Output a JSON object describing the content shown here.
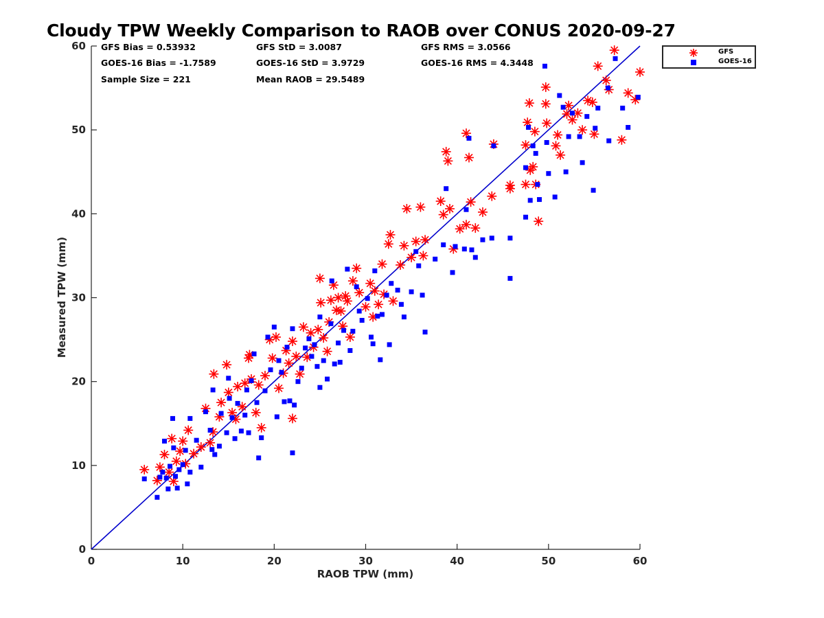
{
  "chart_data": {
    "type": "scatter",
    "title": "Cloudy TPW Weekly Comparison to RAOB over CONUS 2020-09-27",
    "xlabel": "RAOB TPW (mm)",
    "ylabel": "Measured TPW (mm)",
    "xlim": [
      0,
      60
    ],
    "ylim": [
      0,
      60
    ],
    "xticks": [
      "0",
      "10",
      "20",
      "30",
      "40",
      "50",
      "60"
    ],
    "yticks": [
      "0",
      "10",
      "20",
      "30",
      "40",
      "50",
      "60"
    ],
    "grid": false,
    "legend_position": "top-right outside",
    "reference_line": {
      "name": "1:1 line",
      "x": [
        0,
        60
      ],
      "y": [
        0,
        60
      ],
      "color": "#0000cc"
    },
    "stats": [
      [
        "GFS Bias = 0.53932",
        "GFS StD = 3.0087",
        "GFS RMS = 3.0566"
      ],
      [
        "GOES-16 Bias = -1.7589",
        "GOES-16 StD = 3.9729",
        "GOES-16 RMS = 4.3448"
      ],
      [
        "Sample Size = 221",
        "Mean RAOB = 29.5489",
        ""
      ]
    ],
    "series": [
      {
        "name": "GFS",
        "marker": "asterisk",
        "color": "#ff0000",
        "points": [
          [
            5.8,
            9.5
          ],
          [
            7.2,
            8.2
          ],
          [
            7.5,
            9.8
          ],
          [
            8.0,
            11.3
          ],
          [
            8.5,
            9.2
          ],
          [
            8.8,
            13.2
          ],
          [
            9.0,
            8.1
          ],
          [
            9.3,
            10.5
          ],
          [
            9.7,
            11.7
          ],
          [
            10.0,
            12.9
          ],
          [
            10.3,
            10.2
          ],
          [
            10.6,
            14.2
          ],
          [
            11.2,
            11.4
          ],
          [
            12.0,
            12.2
          ],
          [
            12.5,
            16.8
          ],
          [
            13.0,
            12.7
          ],
          [
            13.3,
            14.0
          ],
          [
            13.4,
            20.9
          ],
          [
            14.0,
            15.8
          ],
          [
            14.2,
            17.5
          ],
          [
            14.8,
            22.0
          ],
          [
            15.0,
            18.7
          ],
          [
            15.4,
            16.3
          ],
          [
            15.8,
            15.5
          ],
          [
            16.0,
            19.4
          ],
          [
            16.5,
            17.0
          ],
          [
            16.8,
            19.8
          ],
          [
            17.2,
            22.8
          ],
          [
            17.3,
            23.2
          ],
          [
            17.5,
            20.3
          ],
          [
            18.0,
            16.3
          ],
          [
            18.3,
            19.6
          ],
          [
            18.6,
            14.5
          ],
          [
            19.0,
            20.7
          ],
          [
            19.5,
            25.0
          ],
          [
            19.8,
            22.8
          ],
          [
            20.2,
            25.3
          ],
          [
            20.5,
            19.2
          ],
          [
            21.0,
            21.0
          ],
          [
            21.3,
            23.7
          ],
          [
            21.6,
            22.2
          ],
          [
            22.0,
            15.6
          ],
          [
            22.0,
            24.8
          ],
          [
            22.4,
            23.0
          ],
          [
            22.8,
            20.9
          ],
          [
            23.2,
            26.5
          ],
          [
            23.6,
            22.9
          ],
          [
            24.0,
            25.8
          ],
          [
            24.3,
            24.1
          ],
          [
            24.8,
            26.2
          ],
          [
            25.0,
            32.3
          ],
          [
            25.1,
            29.4
          ],
          [
            25.4,
            25.2
          ],
          [
            25.8,
            23.6
          ],
          [
            26.0,
            27.1
          ],
          [
            26.2,
            29.7
          ],
          [
            26.5,
            31.5
          ],
          [
            26.8,
            28.5
          ],
          [
            27.0,
            30.0
          ],
          [
            27.3,
            28.4
          ],
          [
            27.5,
            26.6
          ],
          [
            27.8,
            30.2
          ],
          [
            28.0,
            29.6
          ],
          [
            28.3,
            25.3
          ],
          [
            28.6,
            32.0
          ],
          [
            29.0,
            33.5
          ],
          [
            29.3,
            30.6
          ],
          [
            30.0,
            28.9
          ],
          [
            30.5,
            31.7
          ],
          [
            30.8,
            27.7
          ],
          [
            31.0,
            30.8
          ],
          [
            31.4,
            29.2
          ],
          [
            31.8,
            34.0
          ],
          [
            32.0,
            30.4
          ],
          [
            32.5,
            36.4
          ],
          [
            32.7,
            37.5
          ],
          [
            33.0,
            29.6
          ],
          [
            33.8,
            33.9
          ],
          [
            34.2,
            36.2
          ],
          [
            34.5,
            40.6
          ],
          [
            35.0,
            34.8
          ],
          [
            35.5,
            36.7
          ],
          [
            36.0,
            40.8
          ],
          [
            36.3,
            35.0
          ],
          [
            36.5,
            36.9
          ],
          [
            38.2,
            41.5
          ],
          [
            38.5,
            39.9
          ],
          [
            38.8,
            47.4
          ],
          [
            39.0,
            46.3
          ],
          [
            39.2,
            40.6
          ],
          [
            39.6,
            35.8
          ],
          [
            40.3,
            38.2
          ],
          [
            41.0,
            49.6
          ],
          [
            41.0,
            38.7
          ],
          [
            41.3,
            46.7
          ],
          [
            41.5,
            41.4
          ],
          [
            42.0,
            38.3
          ],
          [
            42.8,
            40.2
          ],
          [
            43.8,
            42.1
          ],
          [
            44.0,
            48.3
          ],
          [
            45.8,
            43.0
          ],
          [
            45.8,
            43.4
          ],
          [
            47.5,
            43.5
          ],
          [
            47.5,
            48.2
          ],
          [
            47.7,
            50.9
          ],
          [
            47.9,
            53.2
          ],
          [
            48.0,
            45.2
          ],
          [
            48.3,
            45.6
          ],
          [
            48.5,
            49.8
          ],
          [
            48.6,
            43.5
          ],
          [
            48.9,
            39.1
          ],
          [
            49.7,
            53.1
          ],
          [
            49.7,
            55.1
          ],
          [
            49.8,
            50.8
          ],
          [
            50.8,
            48.1
          ],
          [
            51.0,
            49.4
          ],
          [
            51.3,
            47.0
          ],
          [
            52.0,
            51.9
          ],
          [
            52.2,
            52.9
          ],
          [
            52.6,
            51.2
          ],
          [
            53.2,
            52.0
          ],
          [
            53.7,
            50.0
          ],
          [
            54.3,
            53.5
          ],
          [
            54.8,
            53.3
          ],
          [
            55.0,
            49.5
          ],
          [
            55.4,
            57.6
          ],
          [
            56.3,
            55.9
          ],
          [
            56.6,
            54.8
          ],
          [
            57.2,
            59.5
          ],
          [
            58.0,
            48.8
          ],
          [
            58.7,
            54.4
          ],
          [
            59.5,
            53.6
          ],
          [
            60.0,
            56.9
          ]
        ]
      },
      {
        "name": "GOES-16",
        "marker": "square",
        "color": "#0000ff",
        "points": [
          [
            5.8,
            8.4
          ],
          [
            7.2,
            6.2
          ],
          [
            7.5,
            8.6
          ],
          [
            7.8,
            9.2
          ],
          [
            8.0,
            12.9
          ],
          [
            8.2,
            8.5
          ],
          [
            8.4,
            7.2
          ],
          [
            8.6,
            9.9
          ],
          [
            8.9,
            15.6
          ],
          [
            9.0,
            12.1
          ],
          [
            9.2,
            8.7
          ],
          [
            9.4,
            7.3
          ],
          [
            9.6,
            9.5
          ],
          [
            10.0,
            10.1
          ],
          [
            10.3,
            11.8
          ],
          [
            10.5,
            7.8
          ],
          [
            10.8,
            15.6
          ],
          [
            10.8,
            9.2
          ],
          [
            11.5,
            13.0
          ],
          [
            12.0,
            9.8
          ],
          [
            12.5,
            16.4
          ],
          [
            13.0,
            14.2
          ],
          [
            13.2,
            11.9
          ],
          [
            13.3,
            19.0
          ],
          [
            13.5,
            11.3
          ],
          [
            14.0,
            12.3
          ],
          [
            14.2,
            16.2
          ],
          [
            14.8,
            13.9
          ],
          [
            15.0,
            20.4
          ],
          [
            15.1,
            18.0
          ],
          [
            15.4,
            15.7
          ],
          [
            15.7,
            13.2
          ],
          [
            16.0,
            17.4
          ],
          [
            16.4,
            14.1
          ],
          [
            16.8,
            16.0
          ],
          [
            17.0,
            19.0
          ],
          [
            17.2,
            13.9
          ],
          [
            17.5,
            20.1
          ],
          [
            17.8,
            23.3
          ],
          [
            18.1,
            17.5
          ],
          [
            18.3,
            10.9
          ],
          [
            18.6,
            13.3
          ],
          [
            19.0,
            18.9
          ],
          [
            19.3,
            25.3
          ],
          [
            19.6,
            21.4
          ],
          [
            20.0,
            26.5
          ],
          [
            20.3,
            15.8
          ],
          [
            20.5,
            22.5
          ],
          [
            20.8,
            21.1
          ],
          [
            21.1,
            17.6
          ],
          [
            21.4,
            24.1
          ],
          [
            21.7,
            17.7
          ],
          [
            22.0,
            11.5
          ],
          [
            22.0,
            26.3
          ],
          [
            22.2,
            17.2
          ],
          [
            22.6,
            20.0
          ],
          [
            23.0,
            21.6
          ],
          [
            23.4,
            24.0
          ],
          [
            23.8,
            25.1
          ],
          [
            24.1,
            23.0
          ],
          [
            24.4,
            24.4
          ],
          [
            24.7,
            21.8
          ],
          [
            25.0,
            19.3
          ],
          [
            25.0,
            27.7
          ],
          [
            25.4,
            22.5
          ],
          [
            25.8,
            20.3
          ],
          [
            26.2,
            26.9
          ],
          [
            26.3,
            32.0
          ],
          [
            26.6,
            22.1
          ],
          [
            27.0,
            24.6
          ],
          [
            27.2,
            22.3
          ],
          [
            27.6,
            26.1
          ],
          [
            28.0,
            33.4
          ],
          [
            28.3,
            23.7
          ],
          [
            28.6,
            26.0
          ],
          [
            29.0,
            31.3
          ],
          [
            29.3,
            28.4
          ],
          [
            29.6,
            27.3
          ],
          [
            30.2,
            29.9
          ],
          [
            30.6,
            25.3
          ],
          [
            30.8,
            24.5
          ],
          [
            31.0,
            33.2
          ],
          [
            31.3,
            27.8
          ],
          [
            31.6,
            22.6
          ],
          [
            31.8,
            28.0
          ],
          [
            32.3,
            30.3
          ],
          [
            32.6,
            24.4
          ],
          [
            32.8,
            31.7
          ],
          [
            33.5,
            30.9
          ],
          [
            33.9,
            29.2
          ],
          [
            34.2,
            27.7
          ],
          [
            35.0,
            30.7
          ],
          [
            35.5,
            35.5
          ],
          [
            35.8,
            33.8
          ],
          [
            36.2,
            30.3
          ],
          [
            36.5,
            25.9
          ],
          [
            37.6,
            34.6
          ],
          [
            38.5,
            36.3
          ],
          [
            38.8,
            43.0
          ],
          [
            39.5,
            33.0
          ],
          [
            39.8,
            36.1
          ],
          [
            40.8,
            35.8
          ],
          [
            41.0,
            40.5
          ],
          [
            41.3,
            49.0
          ],
          [
            41.6,
            35.7
          ],
          [
            42.0,
            34.8
          ],
          [
            42.8,
            36.9
          ],
          [
            43.8,
            37.1
          ],
          [
            44.0,
            48.1
          ],
          [
            45.8,
            37.1
          ],
          [
            45.8,
            32.3
          ],
          [
            47.5,
            39.6
          ],
          [
            47.5,
            45.5
          ],
          [
            47.8,
            50.3
          ],
          [
            48.0,
            41.6
          ],
          [
            48.3,
            48.1
          ],
          [
            48.6,
            47.2
          ],
          [
            48.8,
            43.5
          ],
          [
            49.0,
            41.7
          ],
          [
            49.6,
            57.6
          ],
          [
            49.8,
            48.5
          ],
          [
            50.0,
            44.8
          ],
          [
            50.7,
            42.0
          ],
          [
            51.2,
            54.1
          ],
          [
            51.6,
            52.7
          ],
          [
            51.9,
            45.0
          ],
          [
            52.2,
            49.2
          ],
          [
            52.6,
            52.0
          ],
          [
            53.4,
            49.2
          ],
          [
            53.7,
            46.1
          ],
          [
            54.2,
            51.6
          ],
          [
            54.9,
            42.8
          ],
          [
            55.1,
            50.2
          ],
          [
            55.4,
            52.6
          ],
          [
            56.5,
            55.0
          ],
          [
            56.6,
            48.7
          ],
          [
            57.3,
            58.5
          ],
          [
            58.1,
            52.6
          ],
          [
            58.7,
            50.3
          ],
          [
            59.8,
            53.9
          ]
        ]
      }
    ]
  }
}
